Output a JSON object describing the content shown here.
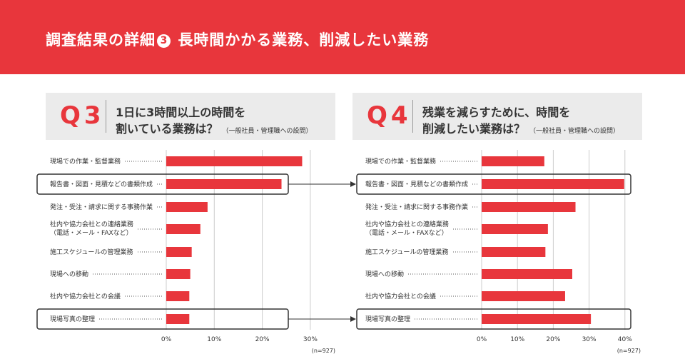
{
  "header": {
    "title_prefix": "調査結果の詳細",
    "badge": "3",
    "title_suffix": "長時間かかる業務、削減したい業務"
  },
  "colors": {
    "accent": "#e8363c",
    "panel": "#ebebeb",
    "grid": "#cccccc"
  },
  "questions": [
    {
      "number": "Q3",
      "line1": "1日に3時間以上の時間を",
      "line2": "割いている業務は？",
      "note": "（一般社員・管理職への設問）"
    },
    {
      "number": "Q4",
      "line1": "残業を減らすために、時間を",
      "line2": "削減したい業務は？",
      "note": "（一般社員・管理職への設問）"
    }
  ],
  "chart_data": [
    {
      "type": "bar",
      "orientation": "horizontal",
      "categories": [
        [
          "現場での作業・監督業務"
        ],
        [
          "報告書・図面・見積などの書類作成"
        ],
        [
          "発注・受注・請求に関する事務作業"
        ],
        [
          "社内や協力会社との連絡業務",
          "（電話・メール・FAXなど）"
        ],
        [
          "施工スケジュールの管理業務"
        ],
        [
          "現場への移動"
        ],
        [
          "社内や協力会社との会議"
        ],
        [
          "現場写真の整理"
        ]
      ],
      "values": [
        28.3,
        24.0,
        8.6,
        7.1,
        5.3,
        5.0,
        4.8,
        4.8
      ],
      "xlim": [
        0,
        30
      ],
      "ticks": [
        "0%",
        "10%",
        "20%",
        "30%"
      ],
      "note": "(n=927)",
      "highlighted": [
        1,
        7
      ],
      "grid": true
    },
    {
      "type": "bar",
      "orientation": "horizontal",
      "categories": [
        [
          "現場での作業・監督業務"
        ],
        [
          "報告書・図面・見積などの書類作成"
        ],
        [
          "発注・受注・請求に関する事務作業"
        ],
        [
          "社内や協力会社との連絡業務",
          "（電話・メール・FAXなど）"
        ],
        [
          "施工スケジュールの管理業務"
        ],
        [
          "現場への移動"
        ],
        [
          "社内や協力会社との会議"
        ],
        [
          "現場写真の整理"
        ]
      ],
      "values": [
        17.5,
        39.8,
        26.2,
        18.5,
        17.8,
        25.3,
        23.3,
        30.5
      ],
      "xlim": [
        0,
        40
      ],
      "ticks": [
        "0%",
        "10%",
        "20%",
        "30%",
        "40%"
      ],
      "note": "(n=927)",
      "highlighted": [
        1,
        7
      ],
      "grid": true
    }
  ]
}
